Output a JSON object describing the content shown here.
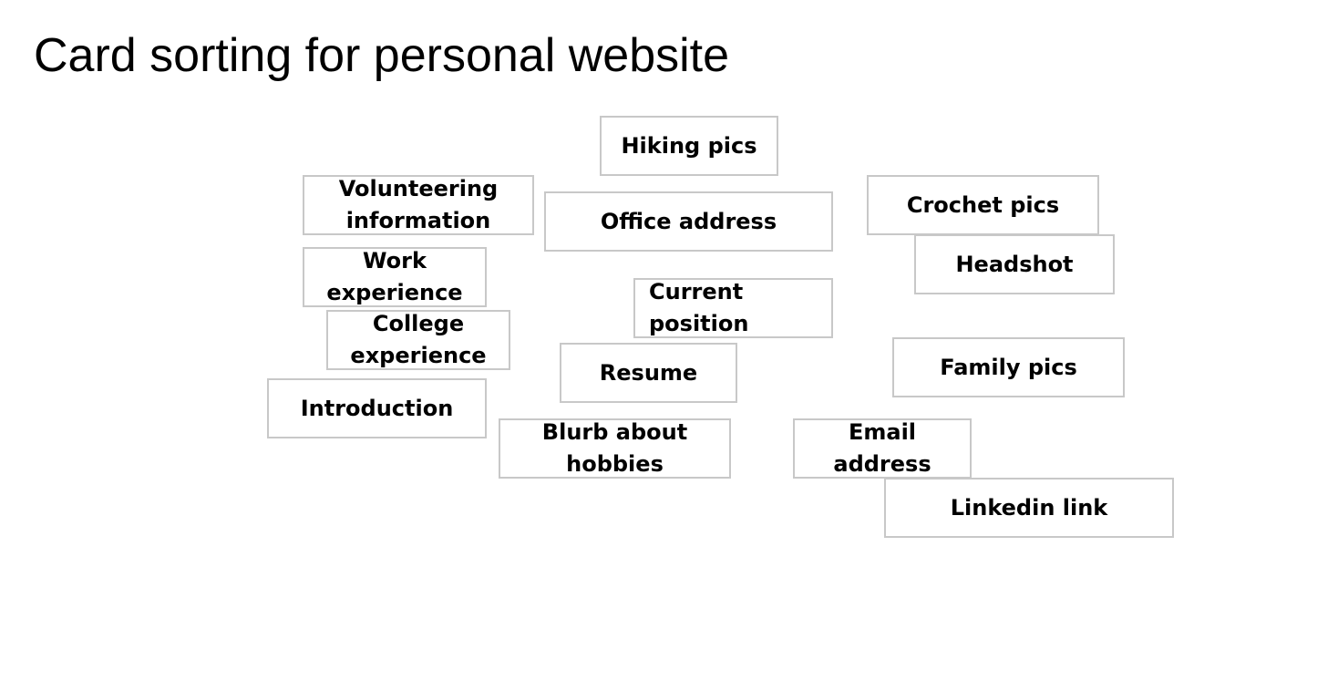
{
  "title": "Card sorting for personal website",
  "cards": {
    "hiking": {
      "line1": "Hiking pics"
    },
    "volunteer": {
      "line1": "Volunteering",
      "line2": "information"
    },
    "office": {
      "line1": "Office address"
    },
    "crochet": {
      "line1": "Crochet pics"
    },
    "headshot": {
      "line1": "Headshot"
    },
    "work": {
      "line1": "Work",
      "line2": "experience"
    },
    "current": {
      "line1": "Current",
      "line2": "position"
    },
    "college": {
      "line1": "College",
      "line2": "experience"
    },
    "resume": {
      "line1": "Resume"
    },
    "family": {
      "line1": "Family pics"
    },
    "intro": {
      "line1": "Introduction"
    },
    "blurb": {
      "line1": "Blurb about",
      "line2": "hobbies"
    },
    "email": {
      "line1": "Email",
      "line2": "address"
    },
    "linkedin": {
      "line1": "Linkedin link"
    }
  },
  "colors": {
    "card_border": "#c8c8c8",
    "text": "#000000",
    "background": "#ffffff"
  }
}
